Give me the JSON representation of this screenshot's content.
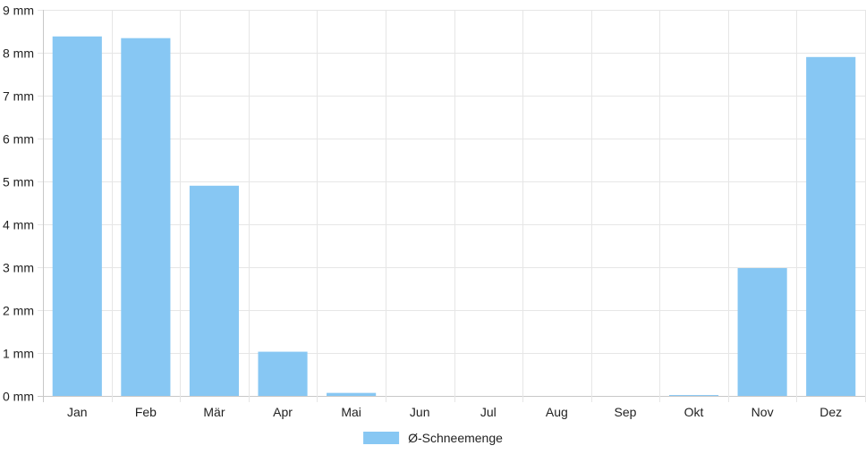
{
  "chart_data": {
    "type": "bar",
    "categories": [
      "Jan",
      "Feb",
      "Mär",
      "Apr",
      "Mai",
      "Jun",
      "Jul",
      "Aug",
      "Sep",
      "Okt",
      "Nov",
      "Dez"
    ],
    "series": [
      {
        "name": "Ø-Schneemenge",
        "values": [
          8.38,
          8.34,
          4.9,
          1.03,
          0.07,
          0,
          0,
          0,
          0,
          0.02,
          2.98,
          7.9
        ],
        "color": "#87c7f3"
      }
    ],
    "y_unit": "mm",
    "ylim": [
      0,
      9
    ],
    "yticks": [
      {
        "value": 0,
        "label": "0 mm"
      },
      {
        "value": 1,
        "label": "1 mm"
      },
      {
        "value": 2,
        "label": "2 mm"
      },
      {
        "value": 3,
        "label": "3 mm"
      },
      {
        "value": 4,
        "label": "4 mm"
      },
      {
        "value": 5,
        "label": "5 mm"
      },
      {
        "value": 6,
        "label": "6 mm"
      },
      {
        "value": 7,
        "label": "7 mm"
      },
      {
        "value": 8,
        "label": "8 mm"
      },
      {
        "value": 9,
        "label": "9 mm"
      }
    ],
    "grid": true,
    "grid_color": "#e6e6e6",
    "axis_color": "#c8c8c8",
    "legend_position": "bottom"
  }
}
